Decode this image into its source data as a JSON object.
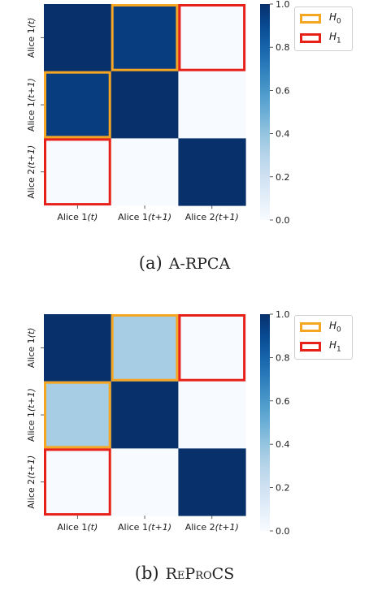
{
  "chart_data": [
    {
      "type": "heatmap",
      "caption_letter": "(a)",
      "caption_method": "A-RPCA",
      "x_ticklabels": [
        "Alice 1(t)",
        "Alice 1(t+1)",
        "Alice 2(t+1)"
      ],
      "y_ticklabels": [
        "Alice 1(t)",
        "Alice 1(t+1)",
        "Alice 2(t+1)"
      ],
      "values": [
        [
          1.0,
          0.95,
          0.0
        ],
        [
          0.95,
          1.0,
          0.0
        ],
        [
          0.0,
          0.0,
          1.0
        ]
      ],
      "colorbar_ticks": [
        "0.0",
        "0.2",
        "0.4",
        "0.6",
        "0.8",
        "1.0"
      ],
      "clim": [
        0,
        1
      ],
      "colormap": "Blues",
      "highlights": [
        {
          "hypothesis": "H0",
          "color": "#f5a623",
          "cells": [
            [
              0,
              1
            ],
            [
              1,
              0
            ]
          ]
        },
        {
          "hypothesis": "H1",
          "color": "#e8201a",
          "cells": [
            [
              0,
              2
            ],
            [
              2,
              0
            ]
          ]
        }
      ],
      "legend": [
        {
          "label": "H",
          "sub": "0",
          "color": "#f5a623"
        },
        {
          "label": "H",
          "sub": "1",
          "color": "#e8201a"
        }
      ],
      "legend_placement": "right of colorbar, top"
    },
    {
      "type": "heatmap",
      "caption_letter": "(b)",
      "caption_method": "ReProCS",
      "x_ticklabels": [
        "Alice 1(t)",
        "Alice 1(t+1)",
        "Alice 2(t+1)"
      ],
      "y_ticklabels": [
        "Alice 1(t)",
        "Alice 1(t+1)",
        "Alice 2(t+1)"
      ],
      "values": [
        [
          1.0,
          0.35,
          0.0
        ],
        [
          0.35,
          1.0,
          0.0
        ],
        [
          0.0,
          0.0,
          1.0
        ]
      ],
      "colorbar_ticks": [
        "0.0",
        "0.2",
        "0.4",
        "0.6",
        "0.8",
        "1.0"
      ],
      "clim": [
        0,
        1
      ],
      "colormap": "Blues",
      "highlights": [
        {
          "hypothesis": "H0",
          "color": "#f5a623",
          "cells": [
            [
              0,
              1
            ],
            [
              1,
              0
            ]
          ]
        },
        {
          "hypothesis": "H1",
          "color": "#e8201a",
          "cells": [
            [
              0,
              2
            ],
            [
              2,
              0
            ]
          ]
        }
      ],
      "legend": [
        {
          "label": "H",
          "sub": "0",
          "color": "#f5a623"
        },
        {
          "label": "H",
          "sub": "1",
          "color": "#e8201a"
        }
      ],
      "legend_placement": "right of colorbar, top"
    }
  ]
}
